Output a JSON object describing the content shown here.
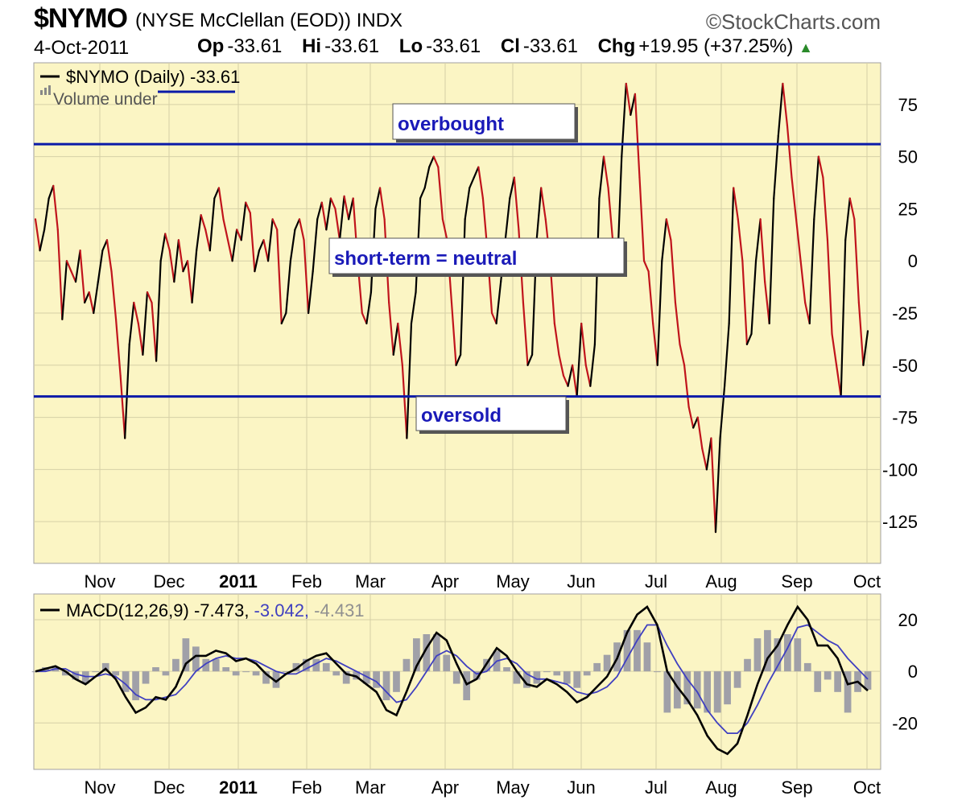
{
  "header": {
    "symbol": "$NYMO",
    "description": "(NYSE McClellan (EOD)) INDX",
    "brand": "©StockCharts.com",
    "date": "4-Oct-2011",
    "open_label": "Op",
    "open_value": "-33.61",
    "high_label": "Hi",
    "high_value": "-33.61",
    "low_label": "Lo",
    "low_value": "-33.61",
    "close_label": "Cl",
    "close_value": "-33.61",
    "change_label": "Chg",
    "change_value": "+19.95 (+37.25%)",
    "up_color": "#2a8a2a"
  },
  "chart_data": [
    {
      "type": "line",
      "legend": "$NYMO (Daily) -33.61",
      "legend_sub": "Volume under",
      "ylim": [
        -145,
        95
      ],
      "yticks": [
        75,
        50,
        25,
        0,
        -25,
        -50,
        -75,
        -100,
        -125
      ],
      "months": [
        "Nov",
        "Dec",
        "2011",
        "Feb",
        "Mar",
        "Apr",
        "May",
        "Jun",
        "Jul",
        "Aug",
        "Sep",
        "Oct"
      ],
      "grid": true,
      "background": "#fbf5c4",
      "up_color": "#000000",
      "down_color": "#c0141c",
      "series": [
        {
          "values": [
            20,
            5,
            15,
            30,
            36,
            15,
            -28,
            0,
            -5,
            -10,
            5,
            -20,
            -15,
            -25,
            -10,
            5,
            10,
            -5,
            -28,
            -55,
            -85,
            -40,
            -20,
            -30,
            -45,
            -15,
            -20,
            -48,
            0,
            13,
            5,
            -10,
            10,
            -5,
            0,
            -20,
            5,
            22,
            15,
            5,
            30,
            35,
            20,
            10,
            0,
            15,
            10,
            28,
            23,
            -5,
            5,
            10,
            0,
            20,
            15,
            -30,
            -25,
            0,
            15,
            20,
            10,
            -25,
            -5,
            20,
            28,
            15,
            30,
            25,
            10,
            31,
            20,
            30,
            0,
            -25,
            -30,
            -15,
            25,
            35,
            20,
            -20,
            -45,
            -30,
            -50,
            -85,
            -30,
            -15,
            30,
            35,
            45,
            50,
            45,
            20,
            10,
            -20,
            -50,
            -45,
            20,
            35,
            40,
            45,
            30,
            5,
            -25,
            -30,
            -10,
            10,
            30,
            40,
            15,
            -20,
            -50,
            -45,
            10,
            35,
            20,
            0,
            -30,
            -45,
            -55,
            -60,
            -50,
            -65,
            -30,
            -50,
            -60,
            -40,
            30,
            50,
            35,
            10,
            -5,
            50,
            85,
            70,
            80,
            40,
            0,
            -5,
            -30,
            -50,
            0,
            20,
            10,
            -20,
            -40,
            -50,
            -70,
            -80,
            -75,
            -90,
            -100,
            -85,
            -130,
            -85,
            -60,
            -30,
            35,
            20,
            0,
            -40,
            -35,
            0,
            20,
            -10,
            -30,
            30,
            60,
            85,
            65,
            40,
            20,
            0,
            -20,
            -30,
            20,
            50,
            40,
            10,
            -35,
            -50,
            -65,
            10,
            30,
            20,
            -20,
            -50,
            -33.61
          ]
        }
      ],
      "bands": [
        {
          "label": "overbought",
          "value": 56
        },
        {
          "label": "short-term = neutral",
          "value": null
        },
        {
          "label": "oversold",
          "value": -65
        }
      ]
    },
    {
      "type": "line",
      "legend_name": "MACD(12,26,9)",
      "legend_macd": "-7.473,",
      "legend_signal": "-3.042,",
      "legend_hist": "-4.431",
      "ylim": [
        -38,
        30
      ],
      "yticks": [
        20,
        0,
        -20
      ],
      "months": [
        "Nov",
        "Dec",
        "2011",
        "Feb",
        "Mar",
        "Apr",
        "May",
        "Jun",
        "Jul",
        "Aug",
        "Sep",
        "Oct"
      ],
      "macd_color": "#000000",
      "signal_color": "#4040c0",
      "hist_color": "#a0a0a8",
      "series": [
        {
          "name": "MACD",
          "values": [
            0,
            1,
            2,
            0,
            -3,
            -5,
            -2,
            1,
            -3,
            -10,
            -16,
            -14,
            -10,
            -11,
            -6,
            3,
            6,
            6,
            8,
            7,
            4,
            5,
            3,
            -1,
            -4,
            -1,
            1,
            4,
            6,
            7,
            3,
            -1,
            -2,
            -5,
            -8,
            -15,
            -17,
            -8,
            2,
            9,
            15,
            12,
            3,
            -5,
            -3,
            3,
            9,
            6,
            0,
            -5,
            -6,
            -3,
            -5,
            -8,
            -12,
            -10,
            -6,
            -2,
            5,
            15,
            22,
            25,
            18,
            0,
            -6,
            -11,
            -17,
            -25,
            -30,
            -32,
            -28,
            -17,
            -5,
            5,
            10,
            18,
            25,
            20,
            10,
            10,
            5,
            -5,
            -4,
            -7.473
          ]
        },
        {
          "name": "Signal",
          "values": [
            0,
            0,
            1,
            1,
            -1,
            -2,
            -2,
            -1,
            -2,
            -5,
            -9,
            -11,
            -11,
            -10,
            -9,
            -5,
            0,
            3,
            5,
            6,
            5,
            5,
            4,
            2,
            0,
            -1,
            -1,
            1,
            3,
            5,
            4,
            2,
            0,
            -2,
            -4,
            -8,
            -12,
            -11,
            -6,
            0,
            6,
            8,
            6,
            2,
            -1,
            0,
            4,
            5,
            3,
            -1,
            -3,
            -3,
            -4,
            -5,
            -8,
            -9,
            -8,
            -6,
            -2,
            5,
            12,
            18,
            18,
            10,
            3,
            -3,
            -8,
            -15,
            -20,
            -24,
            -24,
            -20,
            -13,
            -5,
            2,
            9,
            17,
            18,
            15,
            12,
            10,
            5,
            1,
            -3.042
          ]
        }
      ]
    }
  ]
}
